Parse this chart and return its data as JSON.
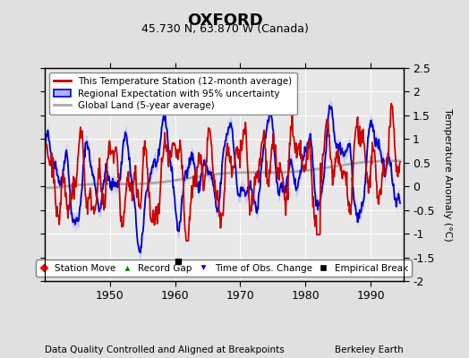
{
  "title": "OXFORD",
  "subtitle": "45.730 N, 63.870 W (Canada)",
  "ylabel": "Temperature Anomaly (°C)",
  "xlabel_left": "Data Quality Controlled and Aligned at Breakpoints",
  "xlabel_right": "Berkeley Earth",
  "ylim": [
    -2.0,
    2.5
  ],
  "xlim": [
    1940,
    1995
  ],
  "xticks": [
    1950,
    1960,
    1970,
    1980,
    1990
  ],
  "yticks": [
    -2,
    -1.5,
    -1,
    -0.5,
    0,
    0.5,
    1,
    1.5,
    2,
    2.5
  ],
  "bg_color": "#e0e0e0",
  "plot_bg_color": "#e8e8e8",
  "legend1_labels": [
    "This Temperature Station (12-month average)",
    "Regional Expectation with 95% uncertainty",
    "Global Land (5-year average)"
  ],
  "legend2_labels": [
    "Station Move",
    "Record Gap",
    "Time of Obs. Change",
    "Empirical Break"
  ],
  "red_line_color": "#cc0000",
  "blue_line_color": "#0000cc",
  "blue_fill_color": "#b0b0ff",
  "gray_line_color": "#aaaaaa",
  "empirical_break_x": 1960.5,
  "empirical_break_y": -1.58,
  "grid_color": "#ffffff",
  "title_fontsize": 13,
  "subtitle_fontsize": 9,
  "tick_fontsize": 9,
  "ylabel_fontsize": 8,
  "legend_fontsize": 7.5,
  "footer_fontsize": 7.5
}
